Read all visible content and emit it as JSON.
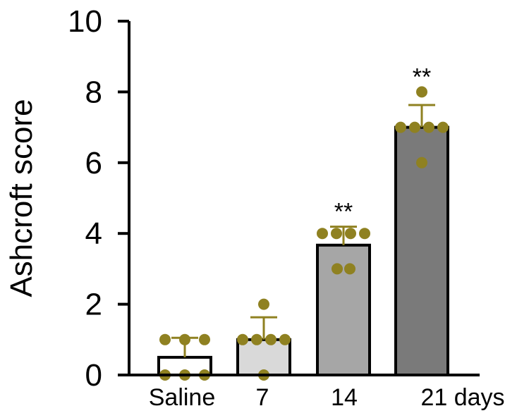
{
  "chart_data": {
    "type": "bar",
    "categories": [
      "Saline",
      "7",
      "14",
      "21 days"
    ],
    "values": [
      0.5,
      1.0,
      3.67,
      7.0
    ],
    "errors": [
      0.55,
      0.63,
      0.52,
      0.63
    ],
    "points": [
      [
        0,
        0,
        0,
        1,
        1,
        1
      ],
      [
        0,
        1,
        1,
        1,
        1,
        2
      ],
      [
        3,
        3,
        4,
        4,
        4,
        4
      ],
      [
        6,
        7,
        7,
        7,
        7,
        8
      ]
    ],
    "annotations": [
      "",
      "",
      "**",
      "**"
    ],
    "ylabel": "Ashcroft score",
    "ylim": [
      0,
      10
    ],
    "yticks": [
      0,
      2,
      4,
      6,
      8,
      10
    ],
    "grid": false,
    "colors": {
      "bars": [
        "#ffffff",
        "#d9d9d9",
        "#a6a6a6",
        "#7a7a7a"
      ],
      "points": "#8f8121",
      "errors": "#8f8121",
      "axis": "#000000"
    }
  }
}
